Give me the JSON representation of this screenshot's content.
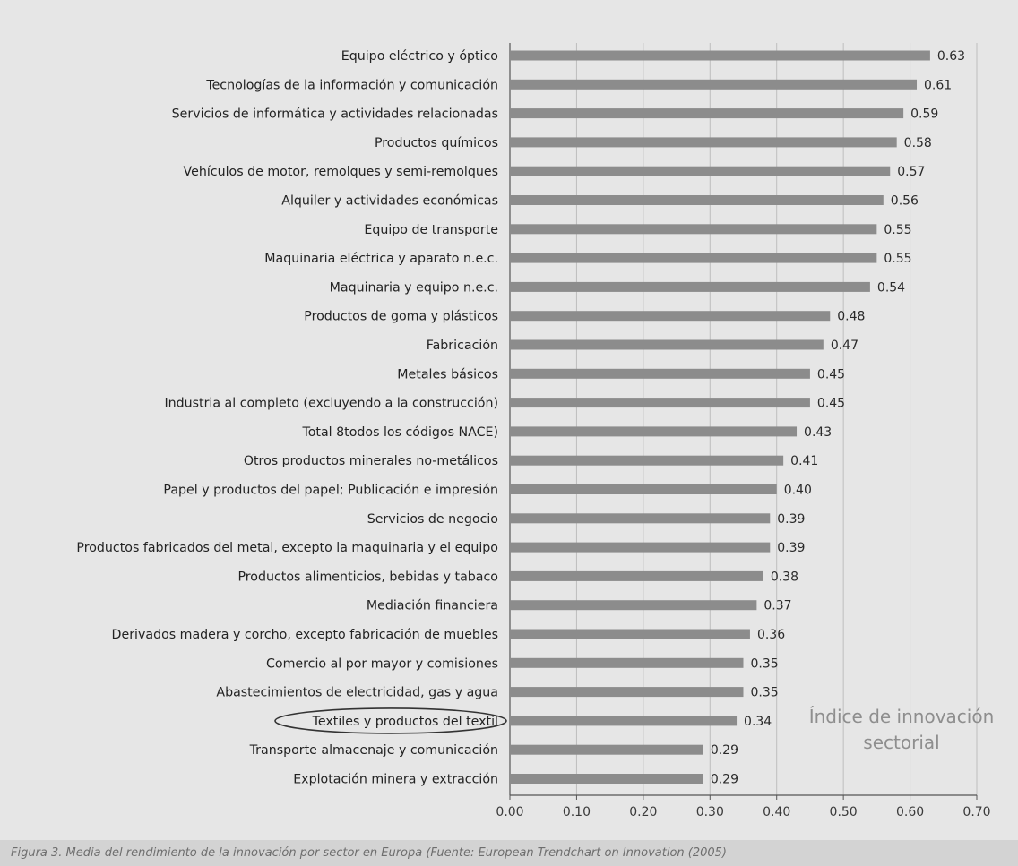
{
  "chart_data": {
    "type": "bar",
    "orientation": "horizontal",
    "title_lines": [
      "Índice de innovación",
      "sectorial"
    ],
    "xlim": [
      0,
      0.7
    ],
    "ticks": [
      "0.00",
      "0.10",
      "0.20",
      "0.30",
      "0.40",
      "0.50",
      "0.60",
      "0.70"
    ],
    "grid": "vertical",
    "highlighted_category": "Textiles y productos del textil",
    "bar_color": "#8c8c8c",
    "categories": [
      "Equipo eléctrico y óptico",
      "Tecnologías de la información y comunicación",
      "Servicios de informática y actividades relacionadas",
      "Productos químicos",
      "Vehículos de motor, remolques y semi-remolques",
      "Alquiler y actividades económicas",
      "Equipo de transporte",
      "Maquinaria eléctrica y aparato n.e.c.",
      "Maquinaria y equipo n.e.c.",
      "Productos de goma y plásticos",
      "Fabricación",
      "Metales básicos",
      "Industria al completo (excluyendo a la construcción)",
      "Total 8todos los códigos NACE)",
      "Otros productos minerales no-metálicos",
      "Papel y productos del papel; Publicación e impresión",
      "Servicios de negocio",
      "Productos fabricados del metal, excepto la maquinaria y el equipo",
      "Productos alimenticios, bebidas y tabaco",
      "Mediación financiera",
      "Derivados madera y corcho, excepto fabricación de muebles",
      "Comercio al por mayor y comisiones",
      "Abastecimientos de electricidad, gas y agua",
      "Textiles y productos del textil",
      "Transporte almacenaje y comunicación",
      "Explotación minera y extracción"
    ],
    "values": [
      0.63,
      0.61,
      0.59,
      0.58,
      0.57,
      0.56,
      0.55,
      0.55,
      0.54,
      0.48,
      0.47,
      0.45,
      0.45,
      0.43,
      0.41,
      0.4,
      0.39,
      0.39,
      0.38,
      0.37,
      0.36,
      0.35,
      0.35,
      0.34,
      0.29,
      0.29
    ],
    "value_labels": [
      "0.63",
      "0.61",
      "0.59",
      "0.58",
      "0.57",
      "0.56",
      "0.55",
      "0.55",
      "0.54",
      "0.48",
      "0.47",
      "0.45",
      "0.45",
      "0.43",
      "0.41",
      "0.40",
      "0.39",
      "0.39",
      "0.38",
      "0.37",
      "0.36",
      "0.35",
      "0.35",
      "0.34",
      "0.29",
      "0.29"
    ]
  },
  "caption": "Figura 3. Media del rendimiento de la innovación por sector en Europa (Fuente: European Trendchart on Innovation (2005)"
}
